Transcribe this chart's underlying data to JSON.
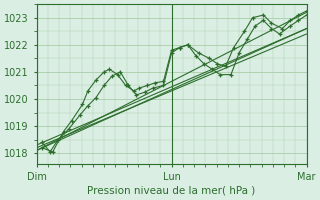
{
  "bg_color": "#daeee4",
  "grid_color": "#aaccaa",
  "line_color": "#2d6e2d",
  "marker_color": "#2d6e2d",
  "title": "Pression niveau de la mer( hPa )",
  "xtick_labels": [
    "Dim",
    "Lun",
    "Mar"
  ],
  "xtick_positions": [
    0.0,
    0.5,
    1.0
  ],
  "ytick_labels": [
    "1018",
    "1019",
    "1020",
    "1021",
    "1022",
    "1023"
  ],
  "ytick_values": [
    1018,
    1019,
    1020,
    1021,
    1022,
    1023
  ],
  "ylim": [
    1017.6,
    1023.5
  ],
  "xlim": [
    0.0,
    1.0
  ],
  "smooth_series": [
    {
      "x": [
        0.0,
        1.0
      ],
      "y": [
        1018.1,
        1023.2
      ]
    },
    {
      "x": [
        0.0,
        1.0
      ],
      "y": [
        1018.1,
        1022.6
      ]
    },
    {
      "x": [
        0.0,
        1.0
      ],
      "y": [
        1018.2,
        1022.4
      ]
    },
    {
      "x": [
        0.0,
        1.0
      ],
      "y": [
        1018.3,
        1022.6
      ]
    }
  ],
  "marker_series_1": {
    "x": [
      0.02,
      0.06,
      0.1,
      0.13,
      0.17,
      0.19,
      0.22,
      0.25,
      0.27,
      0.3,
      0.33,
      0.36,
      0.38,
      0.41,
      0.44,
      0.47,
      0.5,
      0.53,
      0.56,
      0.6,
      0.64,
      0.67,
      0.7,
      0.73,
      0.77,
      0.8,
      0.84,
      0.87,
      0.91,
      0.94,
      0.97,
      1.0
    ],
    "y": [
      1018.2,
      1018.05,
      1018.8,
      1019.2,
      1019.8,
      1020.3,
      1020.7,
      1021.0,
      1021.1,
      1020.9,
      1020.5,
      1020.3,
      1020.4,
      1020.5,
      1020.6,
      1020.65,
      1021.8,
      1021.9,
      1022.0,
      1021.7,
      1021.5,
      1021.3,
      1021.2,
      1021.9,
      1022.5,
      1023.0,
      1023.1,
      1022.8,
      1022.6,
      1022.9,
      1023.1,
      1023.25
    ]
  },
  "marker_series_2": {
    "x": [
      0.02,
      0.05,
      0.08,
      0.12,
      0.16,
      0.19,
      0.22,
      0.25,
      0.28,
      0.31,
      0.34,
      0.37,
      0.4,
      0.43,
      0.47,
      0.5,
      0.53,
      0.56,
      0.59,
      0.62,
      0.65,
      0.68,
      0.72,
      0.75,
      0.78,
      0.81,
      0.84,
      0.87,
      0.9,
      0.94,
      0.97,
      1.0
    ],
    "y": [
      1018.4,
      1018.05,
      1018.5,
      1018.9,
      1019.4,
      1019.75,
      1020.05,
      1020.5,
      1020.85,
      1021.0,
      1020.5,
      1020.15,
      1020.25,
      1020.4,
      1020.5,
      1021.7,
      1021.9,
      1022.0,
      1021.6,
      1021.3,
      1021.1,
      1020.9,
      1020.9,
      1021.7,
      1022.2,
      1022.7,
      1022.9,
      1022.6,
      1022.4,
      1022.7,
      1022.9,
      1023.1
    ]
  }
}
